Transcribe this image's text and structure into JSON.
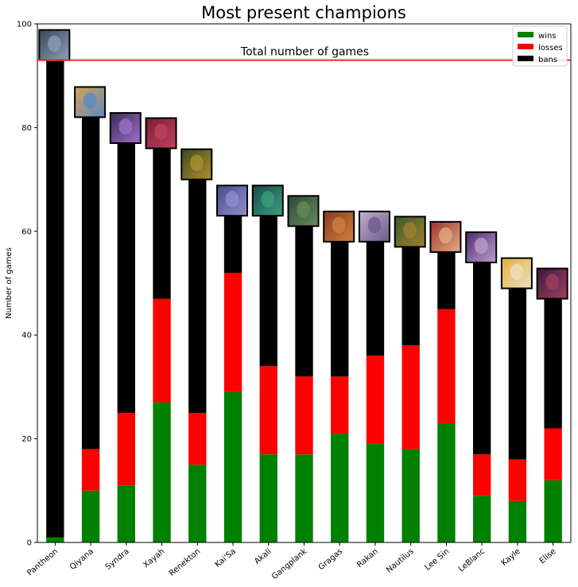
{
  "chart_data": {
    "type": "bar",
    "stacked": true,
    "title": "Most present champions",
    "xlabel": "",
    "ylabel": "Number of games",
    "ylim": [
      0,
      100
    ],
    "yticks": [
      0,
      20,
      40,
      60,
      80,
      100
    ],
    "categories": [
      "Pantheon",
      "Qiyana",
      "Syndra",
      "Xayah",
      "Renekton",
      "Kai'Sa",
      "Akali",
      "Gangplank",
      "Gragas",
      "Rakan",
      "Nautilus",
      "Lee Sin",
      "LeBlanc",
      "Kayle",
      "Elise"
    ],
    "series": [
      {
        "name": "wins",
        "color": "#008000",
        "values": [
          1,
          10,
          11,
          27,
          15,
          29,
          17,
          17,
          21,
          19,
          18,
          23,
          9,
          8,
          12
        ]
      },
      {
        "name": "losses",
        "color": "#ff0000",
        "values": [
          0,
          8,
          14,
          20,
          10,
          23,
          17,
          15,
          11,
          17,
          20,
          22,
          8,
          8,
          10
        ]
      },
      {
        "name": "bans",
        "color": "#000000",
        "values": [
          92,
          64,
          52,
          29,
          45,
          11,
          29,
          29,
          26,
          22,
          19,
          11,
          37,
          33,
          25
        ]
      }
    ],
    "reference_line": {
      "value": 93,
      "label": "Total number of games",
      "color": "#ff2a1a"
    },
    "legend_position": "top-right",
    "grid": false,
    "champion_icon_colors": [
      [
        "#3a4658",
        "#8aa0b8"
      ],
      [
        "#d8a05a",
        "#5a8ac0"
      ],
      [
        "#3a2a5a",
        "#a070c8"
      ],
      [
        "#7a2030",
        "#c04060"
      ],
      [
        "#3a4a20",
        "#b09030"
      ],
      [
        "#4a4a8a",
        "#9090d0"
      ],
      [
        "#1a4a4a",
        "#3aa080"
      ],
      [
        "#2a4a3a",
        "#6a8a5a"
      ],
      [
        "#8a3a20",
        "#d08040"
      ],
      [
        "#c0b0c8",
        "#6a5a8a"
      ],
      [
        "#3a5a2a",
        "#a08030"
      ],
      [
        "#a03030",
        "#e0b080"
      ],
      [
        "#4a2a6a",
        "#c0a0d0"
      ],
      [
        "#e0b040",
        "#f0e0c0"
      ],
      [
        "#3a1a3a",
        "#a04060"
      ]
    ]
  }
}
